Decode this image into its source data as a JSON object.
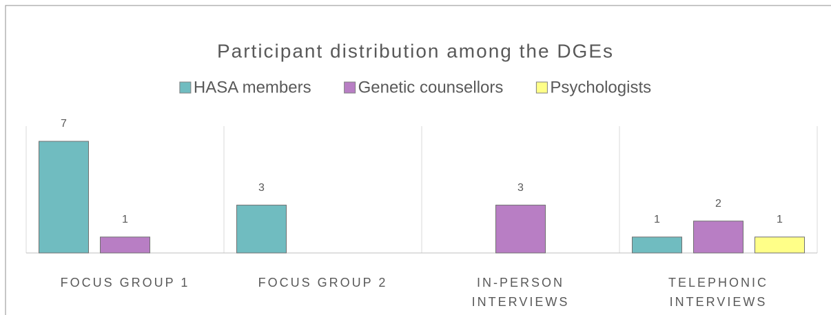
{
  "chart_data": {
    "type": "bar",
    "title": "Participant distribution among the DGEs",
    "categories": [
      "FOCUS GROUP 1",
      "FOCUS GROUP 2",
      "IN-PERSON INTERVIEWS",
      "TELEPHONIC INTERVIEWS"
    ],
    "series": [
      {
        "name": "HASA members",
        "color": "#70bcc0",
        "values": [
          7,
          3,
          null,
          1
        ]
      },
      {
        "name": "Genetic counsellors",
        "color": "#b87ec4",
        "values": [
          1,
          null,
          3,
          2
        ]
      },
      {
        "name": "Psychologists",
        "color": "#ffff88",
        "values": [
          null,
          null,
          null,
          1
        ]
      }
    ],
    "legend": "top"
  }
}
